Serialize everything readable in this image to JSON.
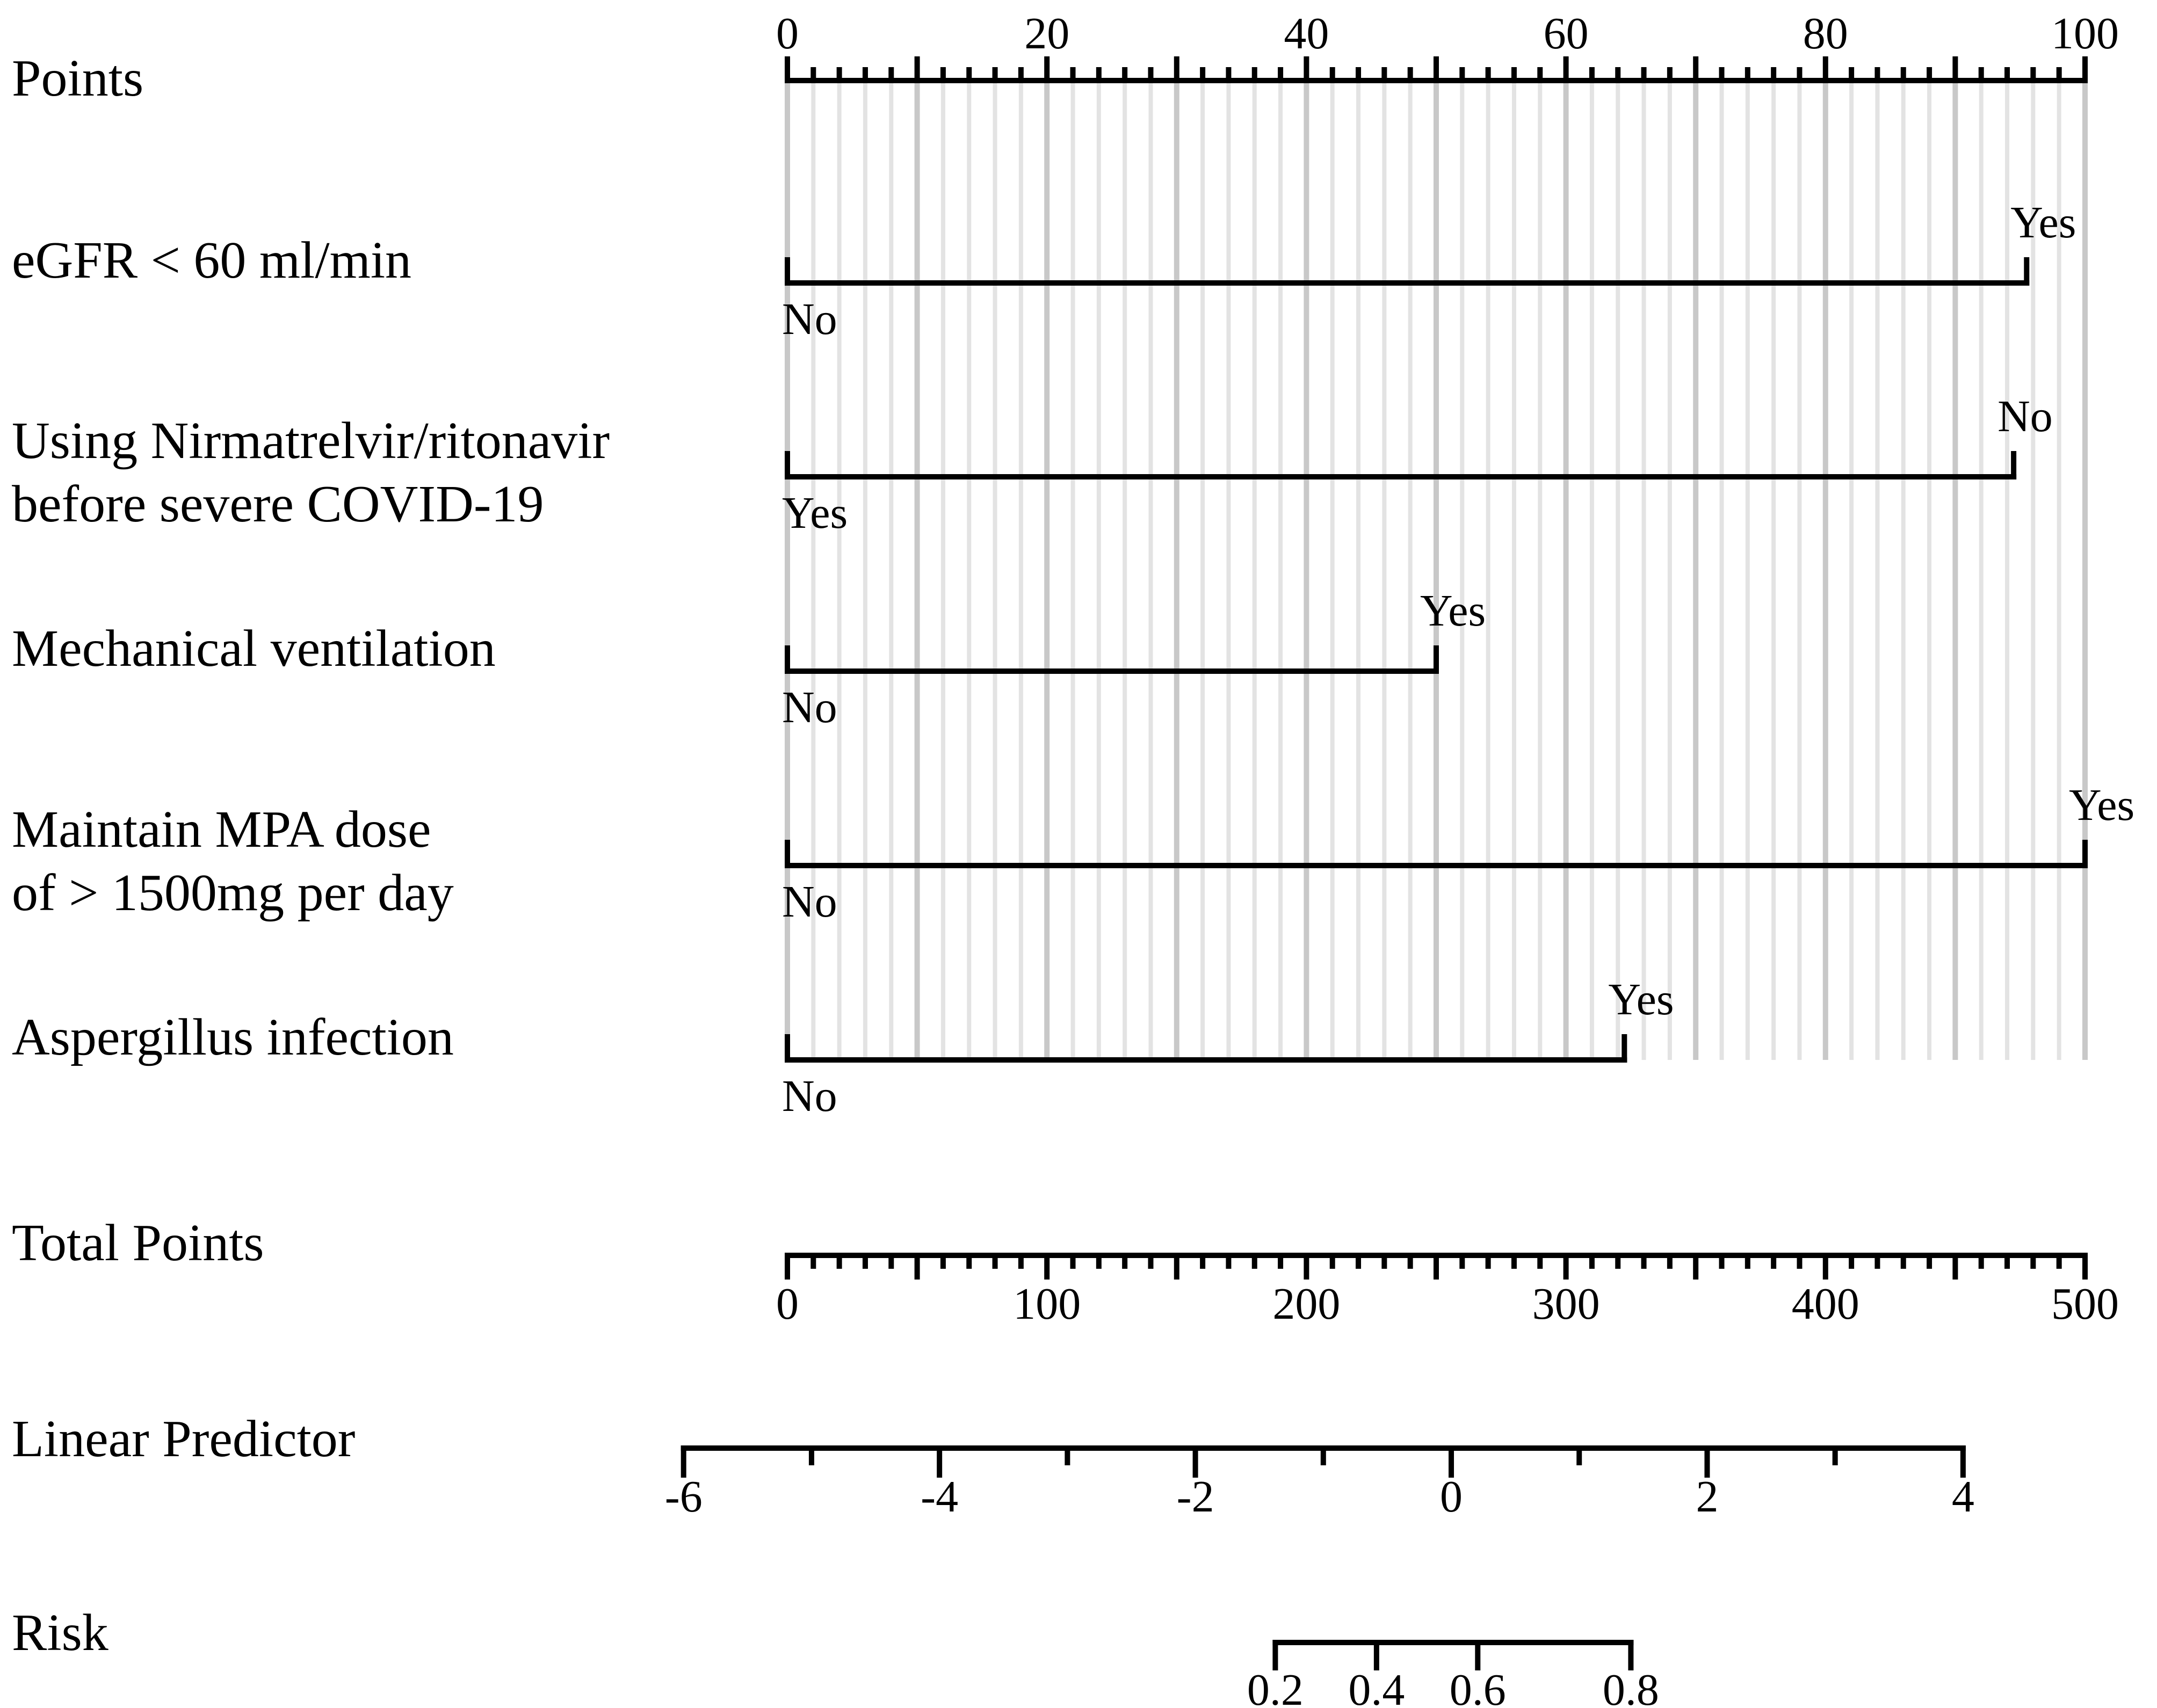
{
  "chart_data": {
    "type": "nomogram",
    "points_axis": {
      "label": "Points",
      "range": [
        0,
        100
      ],
      "major_ticks": [
        0,
        20,
        40,
        60,
        80,
        100
      ],
      "minor_step": 2
    },
    "predictors": [
      {
        "label": [
          "eGFR < 60 ml/min"
        ],
        "levels": [
          {
            "name": "No",
            "points": 0
          },
          {
            "name": "Yes",
            "points": 95.5
          }
        ]
      },
      {
        "label": [
          "Using Nirmatrelvir/ritonavir",
          "before severe COVID-19"
        ],
        "levels": [
          {
            "name": "Yes",
            "points": 0
          },
          {
            "name": "No",
            "points": 94.5
          }
        ]
      },
      {
        "label": [
          "Mechanical ventilation"
        ],
        "levels": [
          {
            "name": "No",
            "points": 0
          },
          {
            "name": "Yes",
            "points": 50
          }
        ]
      },
      {
        "label": [
          "Maintain MPA dose",
          "of > 1500mg per day"
        ],
        "levels": [
          {
            "name": "No",
            "points": 0
          },
          {
            "name": "Yes",
            "points": 100
          }
        ]
      },
      {
        "label": [
          "Aspergillus infection"
        ],
        "levels": [
          {
            "name": "No",
            "points": 0
          },
          {
            "name": "Yes",
            "points": 64.5
          }
        ]
      }
    ],
    "total_points_axis": {
      "label": "Total Points",
      "range": [
        0,
        500
      ],
      "major_ticks": [
        0,
        100,
        200,
        300,
        400,
        500
      ],
      "minor_step": 10
    },
    "linear_predictor_axis": {
      "label": "Linear Predictor",
      "range": [
        -6,
        4
      ],
      "major_ticks": [
        -6,
        -4,
        -2,
        0,
        2,
        4
      ],
      "minor_step": 1,
      "total_points_at_range": [
        -40,
        453
      ]
    },
    "risk_axis": {
      "label": "Risk",
      "ticks": [
        0.2,
        0.4,
        0.6,
        0.8
      ],
      "total_points_at_ticks": [
        188,
        227,
        266,
        325
      ]
    },
    "colors": {
      "line": "#000000",
      "grid_major": "#c8c8c8",
      "grid_minor": "#e3e3e3"
    }
  }
}
